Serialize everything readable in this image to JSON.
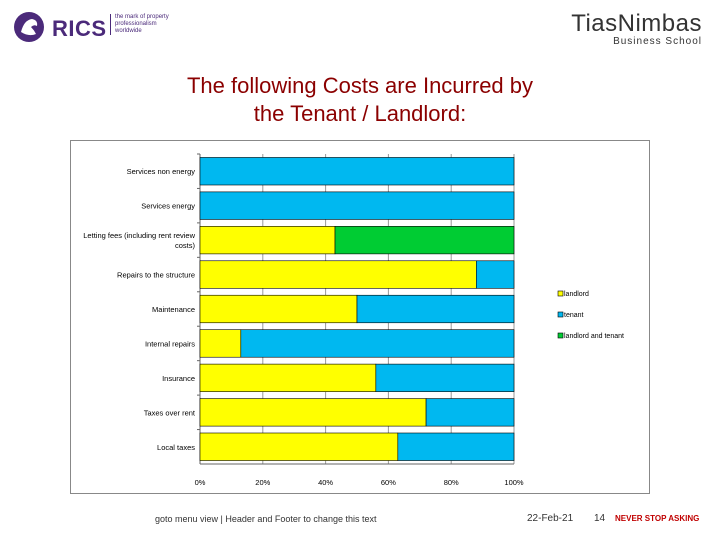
{
  "header": {
    "rics_logo": "RICS",
    "rics_tagline": "the mark of property professionalism worldwide",
    "tias_logo": "TiasNimbas",
    "tias_sub": "Business School"
  },
  "title_line1": "The following Costs are Incurred by",
  "title_line2": "the Tenant / Landlord:",
  "chart_data": {
    "type": "bar",
    "orientation": "horizontal",
    "stacked": true,
    "categories": [
      "Services non energy",
      "Services energy",
      "Letting fees (including rent review costs)",
      "Repairs to the structure",
      "Maintenance",
      "Internal repairs",
      "Insurance",
      "Taxes over rent",
      "Local taxes"
    ],
    "category_lines": [
      [
        "Services non energy"
      ],
      [
        "Services energy"
      ],
      [
        "Letting fees (including rent review",
        "costs)"
      ],
      [
        "Repairs to the structure"
      ],
      [
        "Maintenance"
      ],
      [
        "Internal repairs"
      ],
      [
        "Insurance"
      ],
      [
        "Taxes over rent"
      ],
      [
        "Local taxes"
      ]
    ],
    "series": [
      {
        "name": "landlord",
        "color": "#ffff00",
        "values": [
          0,
          0,
          43,
          88,
          50,
          13,
          56,
          72,
          63
        ]
      },
      {
        "name": "tenant",
        "color": "#00b8f0",
        "values": [
          100,
          100,
          0,
          12,
          50,
          87,
          44,
          28,
          37
        ]
      },
      {
        "name": "landlord and tenant",
        "color": "#00cc33",
        "values": [
          0,
          0,
          57,
          0,
          0,
          0,
          0,
          0,
          0
        ]
      }
    ],
    "x_ticks": [
      "0%",
      "20%",
      "40%",
      "60%",
      "80%",
      "100%"
    ],
    "xlim": [
      0,
      100
    ],
    "legend_position": "right",
    "grid": true
  },
  "footer": {
    "text": "goto menu view | Header and Footer to change this text",
    "date": "22-Feb-21",
    "page": "14",
    "slogan": "NEVER STOP ASKING"
  }
}
